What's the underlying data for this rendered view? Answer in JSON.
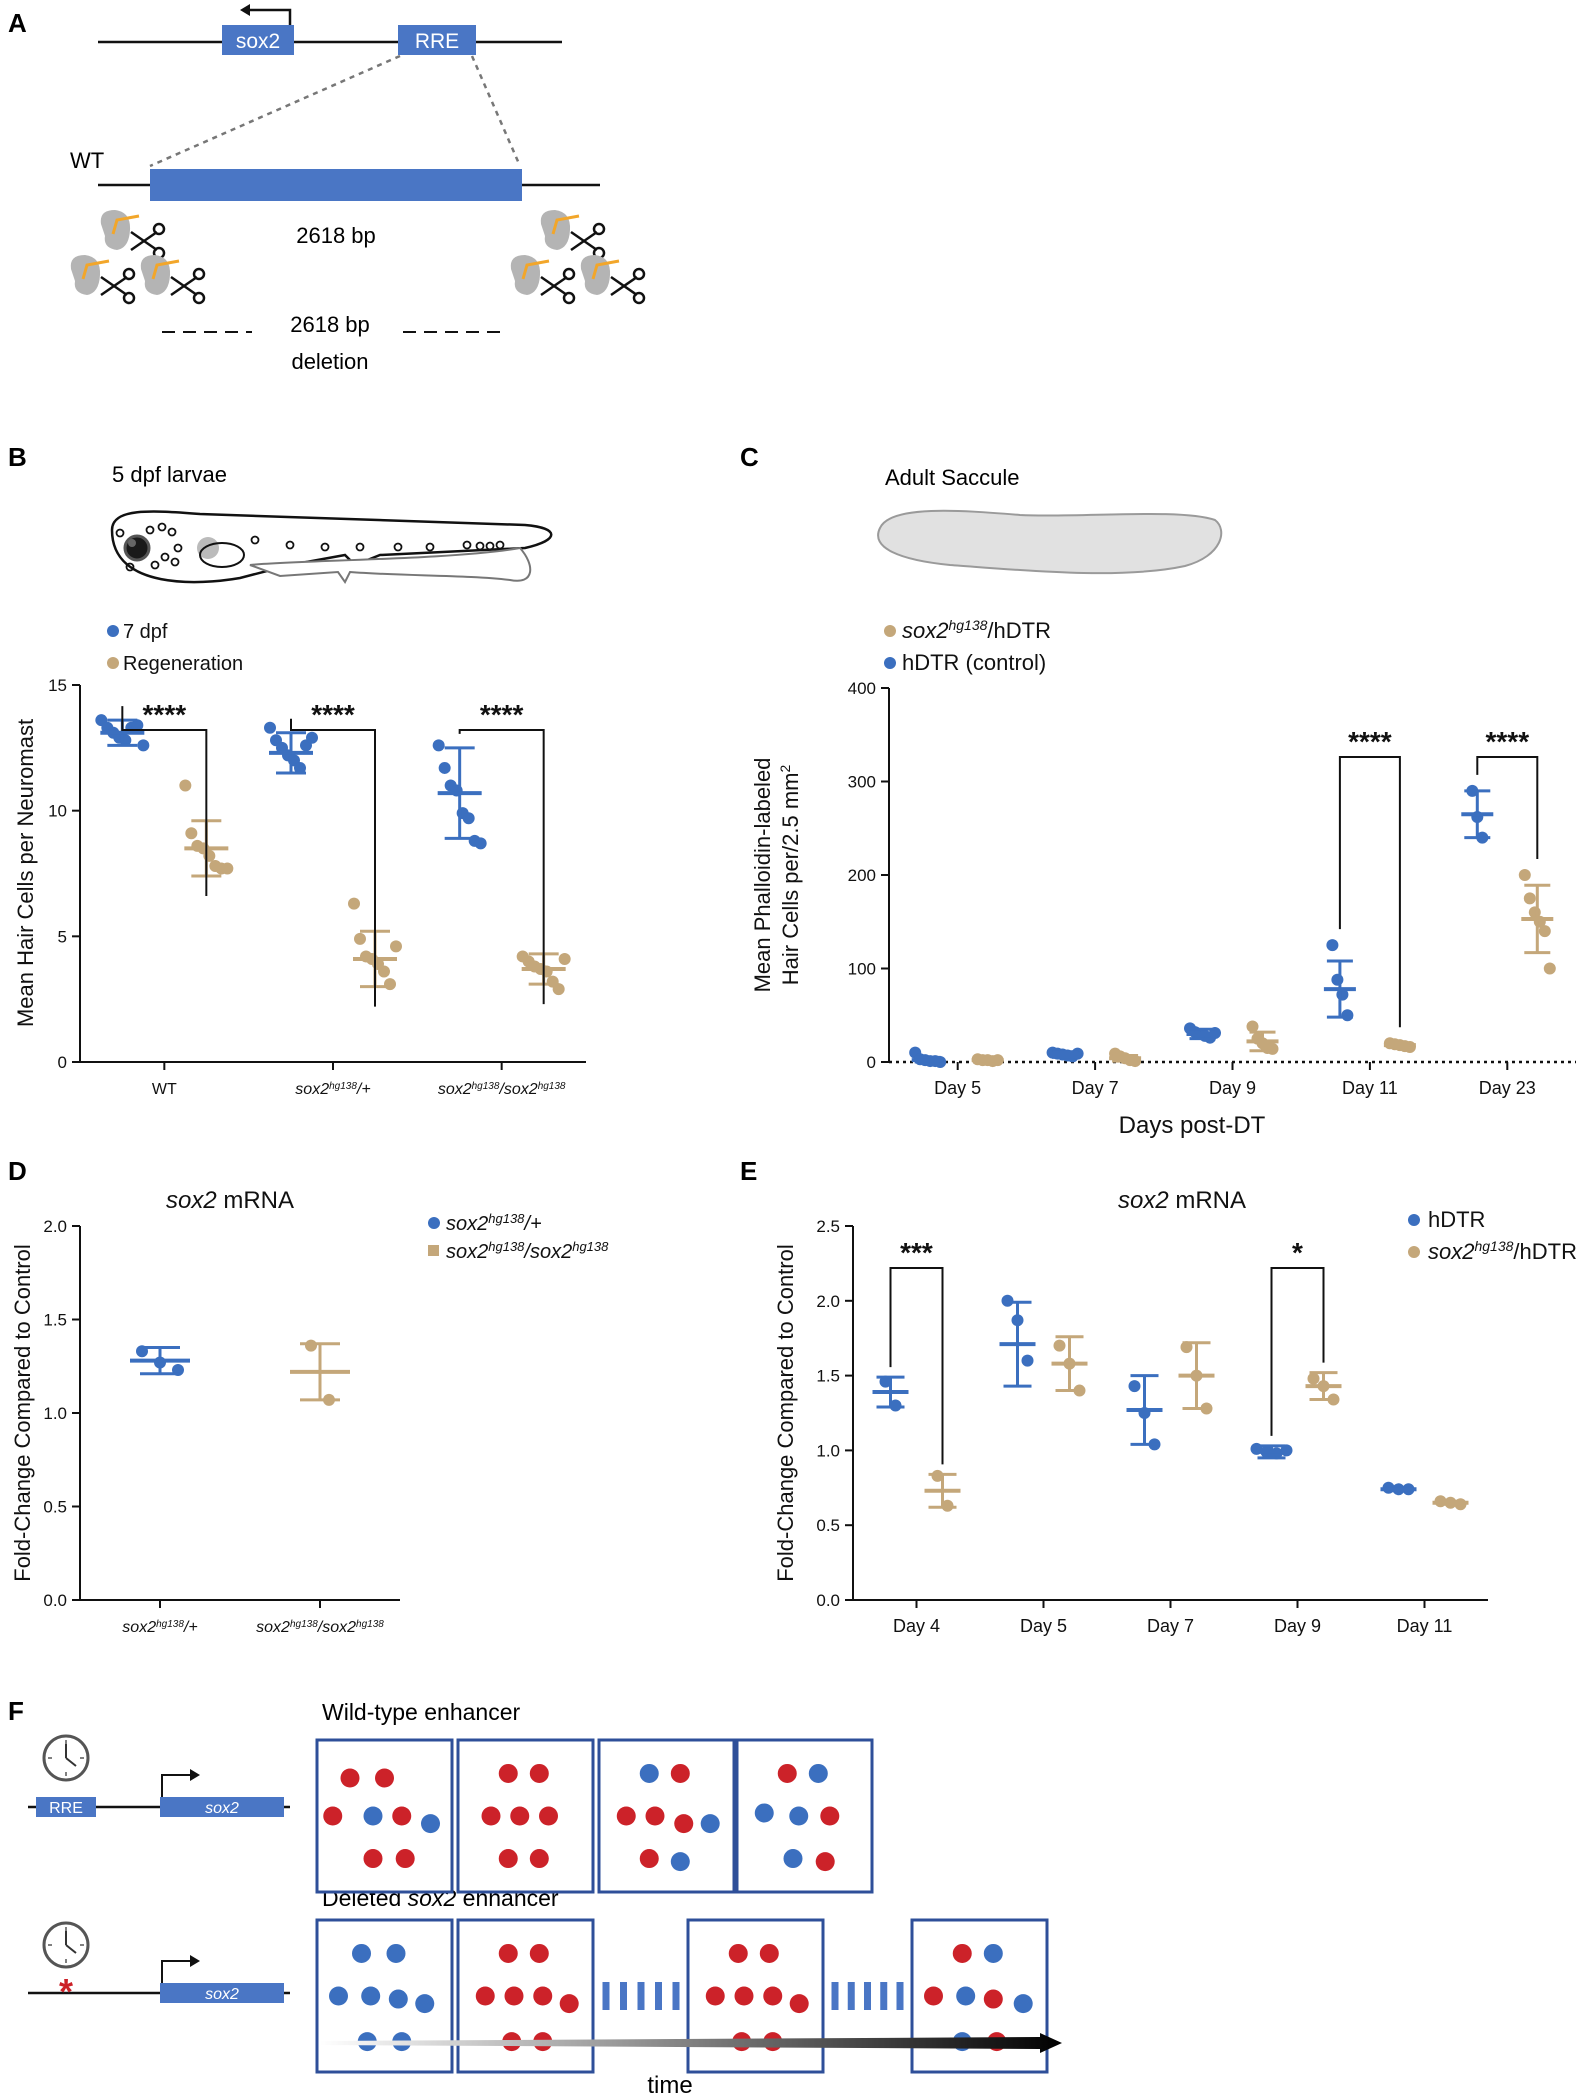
{
  "colors": {
    "blue": "#3b6fbf",
    "tan": "#c4a77a",
    "red": "#cc2229",
    "box": "#2e4f99",
    "gene": "#4a76c5",
    "gray": "#b4b4b4",
    "orange": "#f2a62a"
  },
  "panel_a": {
    "letter": "A",
    "gene_label": "sox2",
    "rre_label": "RRE",
    "wt_label": "WT",
    "size_label": "2618 bp",
    "deletion_line1": "2618 bp",
    "deletion_line2": "deletion"
  },
  "panel_b": {
    "letter": "B",
    "larvae_label": "5 dpf larvae"
  },
  "panel_c": {
    "letter": "C",
    "saccule_label": "Adult Saccule"
  },
  "panel_d": {
    "letter": "D"
  },
  "panel_e": {
    "letter": "E"
  },
  "panel_f": {
    "letter": "F",
    "wt_title": "Wild-type enhancer",
    "del_title_prefix": "Deleted ",
    "del_title_gene": "sox2",
    "del_title_suffix": " enhancer",
    "rre_label": "RRE",
    "gene_label": "sox2",
    "time_label": "time",
    "wt_boxes": [
      [
        [
          "r",
          0.2,
          0.25
        ],
        [
          "r",
          0.5,
          0.25
        ],
        [
          "r",
          0.05,
          0.5
        ],
        [
          "b",
          0.4,
          0.5
        ],
        [
          "r",
          0.65,
          0.5
        ],
        [
          "b",
          0.9,
          0.55
        ],
        [
          "r",
          0.4,
          0.78
        ],
        [
          "r",
          0.68,
          0.78
        ]
      ],
      [
        [
          "r",
          0.35,
          0.22
        ],
        [
          "r",
          0.62,
          0.22
        ],
        [
          "r",
          0.2,
          0.5
        ],
        [
          "r",
          0.45,
          0.5
        ],
        [
          "r",
          0.7,
          0.5
        ],
        [
          "r",
          0.35,
          0.78
        ],
        [
          "r",
          0.62,
          0.78
        ]
      ],
      [
        [
          "b",
          0.35,
          0.22
        ],
        [
          "r",
          0.62,
          0.22
        ],
        [
          "r",
          0.15,
          0.5
        ],
        [
          "r",
          0.4,
          0.5
        ],
        [
          "r",
          0.65,
          0.55
        ],
        [
          "b",
          0.88,
          0.55
        ],
        [
          "r",
          0.35,
          0.78
        ],
        [
          "b",
          0.62,
          0.8
        ]
      ],
      [
        [
          "r",
          0.35,
          0.22
        ],
        [
          "b",
          0.62,
          0.22
        ],
        [
          "b",
          0.15,
          0.48
        ],
        [
          "b",
          0.45,
          0.5
        ],
        [
          "r",
          0.72,
          0.5
        ],
        [
          "b",
          0.4,
          0.78
        ],
        [
          "r",
          0.68,
          0.8
        ]
      ]
    ],
    "del_boxes": [
      [
        [
          "b",
          0.3,
          0.22
        ],
        [
          "b",
          0.6,
          0.22
        ],
        [
          "b",
          0.1,
          0.5
        ],
        [
          "b",
          0.38,
          0.5
        ],
        [
          "b",
          0.62,
          0.52
        ],
        [
          "b",
          0.85,
          0.55
        ],
        [
          "b",
          0.35,
          0.8
        ],
        [
          "b",
          0.65,
          0.8
        ]
      ],
      [
        [
          "r",
          0.35,
          0.22
        ],
        [
          "r",
          0.62,
          0.22
        ],
        [
          "r",
          0.15,
          0.5
        ],
        [
          "r",
          0.4,
          0.5
        ],
        [
          "r",
          0.65,
          0.5
        ],
        [
          "r",
          0.88,
          0.55
        ],
        [
          "r",
          0.38,
          0.8
        ],
        [
          "r",
          0.65,
          0.8
        ]
      ],
      [
        [
          "r",
          0.35,
          0.22
        ],
        [
          "r",
          0.62,
          0.22
        ],
        [
          "r",
          0.15,
          0.5
        ],
        [
          "r",
          0.4,
          0.5
        ],
        [
          "r",
          0.65,
          0.5
        ],
        [
          "r",
          0.88,
          0.55
        ],
        [
          "r",
          0.38,
          0.8
        ],
        [
          "r",
          0.65,
          0.8
        ]
      ],
      [
        [
          "r",
          0.35,
          0.22
        ],
        [
          "b",
          0.62,
          0.22
        ],
        [
          "r",
          0.1,
          0.5
        ],
        [
          "b",
          0.38,
          0.5
        ],
        [
          "r",
          0.62,
          0.52
        ],
        [
          "b",
          0.88,
          0.55
        ],
        [
          "b",
          0.35,
          0.8
        ],
        [
          "r",
          0.65,
          0.8
        ]
      ]
    ]
  },
  "chart_data": [
    {
      "id": "B",
      "type": "scatter",
      "ylabel": "Mean Hair Cells per Neuromast",
      "ylim": [
        0,
        15
      ],
      "yticks": [
        0,
        5,
        10,
        15
      ],
      "categories": [
        {
          "label": "WT",
          "pre": "",
          "sup": "",
          "mid": "",
          "sup2": ""
        },
        {
          "label": "",
          "pre": "sox2",
          "sup": "hg138",
          "mid": "/+",
          "sup2": ""
        },
        {
          "label": "",
          "pre": "sox2",
          "sup": "hg138",
          "mid": "/sox2",
          "sup2": "hg138"
        }
      ],
      "legend": [
        {
          "name": "7 dpf",
          "color": "blue",
          "italic": false
        },
        {
          "name": "Regeneration",
          "color": "tan",
          "italic": false
        }
      ],
      "series": [
        {
          "name": "7 dpf",
          "color": "blue",
          "groups": [
            {
              "mean": 13.1,
              "sd": 0.5,
              "points": [
                13.6,
                13.3,
                13.1,
                12.9,
                12.8,
                13.3,
                13.4,
                12.6
              ]
            },
            {
              "mean": 12.3,
              "sd": 0.8,
              "points": [
                13.3,
                12.8,
                12.5,
                12.2,
                12.0,
                11.7,
                12.6,
                12.9
              ]
            },
            {
              "mean": 10.7,
              "sd": 1.8,
              "points": [
                12.6,
                11.7,
                11.0,
                10.8,
                9.9,
                9.7,
                8.8,
                8.7
              ]
            }
          ]
        },
        {
          "name": "Regeneration",
          "color": "tan",
          "groups": [
            {
              "mean": 8.5,
              "sd": 1.1,
              "points": [
                11.0,
                9.1,
                8.6,
                8.5,
                8.2,
                7.8,
                7.7,
                7.7
              ]
            },
            {
              "mean": 4.1,
              "sd": 1.1,
              "points": [
                6.3,
                4.9,
                4.2,
                4.1,
                3.9,
                3.6,
                3.1,
                4.6
              ]
            },
            {
              "mean": 3.7,
              "sd": 0.6,
              "points": [
                4.2,
                4.0,
                3.8,
                3.7,
                3.6,
                3.2,
                2.9,
                4.1
              ]
            }
          ]
        }
      ],
      "significance": [
        "****",
        "****",
        "****"
      ]
    },
    {
      "id": "C",
      "type": "scatter",
      "xlabel": "Days post-DT",
      "ylabel_line1": "Mean Phalloidin-labeled",
      "ylabel_line2": "Hair Cells per/2.5 mm",
      "ylabel_sup": "2",
      "ylim": [
        0,
        400
      ],
      "yticks": [
        0,
        100,
        200,
        300,
        400
      ],
      "categories": [
        "Day 5",
        "Day 7",
        "Day 9",
        "Day 11",
        "Day 23"
      ],
      "legend": [
        {
          "pre": "sox2",
          "sup": "hg138",
          "post": "/hDTR",
          "color": "tan"
        },
        {
          "pre": "",
          "sup": "",
          "post": "hDTR (control)",
          "color": "blue"
        }
      ],
      "series": [
        {
          "name": "hDTR (control)",
          "color": "blue",
          "groups": [
            {
              "mean": 2,
              "sd": 3,
              "points": [
                10,
                3,
                2,
                1,
                1,
                0
              ]
            },
            {
              "mean": 8,
              "sd": 3,
              "points": [
                10,
                9,
                8,
                7,
                6,
                9
              ]
            },
            {
              "mean": 30,
              "sd": 5,
              "points": [
                36,
                32,
                30,
                28,
                26,
                31
              ]
            },
            {
              "mean": 78,
              "sd": 30,
              "points": [
                125,
                88,
                72,
                50
              ]
            },
            {
              "mean": 265,
              "sd": 25,
              "points": [
                290,
                262,
                240
              ]
            }
          ]
        },
        {
          "name": "sox2hg138/hDTR",
          "color": "tan",
          "groups": [
            {
              "mean": 2,
              "sd": 1,
              "points": [
                3,
                2,
                2,
                1,
                2
              ]
            },
            {
              "mean": 4,
              "sd": 3,
              "points": [
                9,
                6,
                4,
                2,
                1
              ]
            },
            {
              "mean": 22,
              "sd": 10,
              "points": [
                38,
                25,
                20,
                15,
                14
              ]
            },
            {
              "mean": 18,
              "sd": 2,
              "points": [
                20,
                19,
                18,
                17,
                16
              ]
            },
            {
              "mean": 153,
              "sd": 36,
              "points": [
                200,
                175,
                160,
                150,
                140,
                100
              ]
            }
          ]
        }
      ],
      "significance": [
        {
          "index": 3,
          "text": "****"
        },
        {
          "index": 4,
          "text": "****"
        }
      ]
    },
    {
      "id": "D",
      "type": "scatter",
      "title_gene": "sox2",
      "title_rest": " mRNA",
      "ylabel": "Fold-Change Compared to Control",
      "ylim": [
        0,
        2
      ],
      "yticks": [
        0.0,
        0.5,
        1.0,
        1.5,
        2.0
      ],
      "categories": [
        {
          "pre": "sox2",
          "sup": "hg138",
          "mid": "/+",
          "sup2": ""
        },
        {
          "pre": "sox2",
          "sup": "hg138",
          "mid": "/sox2",
          "sup2": "hg138"
        }
      ],
      "legend": [
        {
          "pre": "sox2",
          "sup": "hg138",
          "mid": "/+",
          "sup2": "",
          "color": "blue"
        },
        {
          "pre": "sox2",
          "sup": "hg138",
          "mid": "/sox2",
          "sup2": "hg138",
          "color": "tan"
        }
      ],
      "series": [
        {
          "name": "sox2hg138/+",
          "color": "blue",
          "groups": [
            {
              "mean": 1.28,
              "sd": 0.07,
              "points": [
                1.33,
                1.27,
                1.23
              ]
            }
          ]
        },
        {
          "name": "sox2hg138/sox2hg138",
          "color": "tan",
          "groups": [
            {
              "mean": 1.22,
              "sd": 0.15,
              "points": [
                1.36,
                1.07
              ]
            }
          ]
        }
      ]
    },
    {
      "id": "E",
      "type": "scatter",
      "title_gene": "sox2",
      "title_rest": " mRNA",
      "ylabel": "Fold-Change Compared to Control",
      "ylim": [
        0,
        2.5
      ],
      "yticks": [
        0.0,
        0.5,
        1.0,
        1.5,
        2.0,
        2.5
      ],
      "categories": [
        "Day 4",
        "Day 5",
        "Day 7",
        "Day 9",
        "Day 11"
      ],
      "legend": [
        {
          "pre": "",
          "sup": "",
          "post": "hDTR",
          "color": "blue"
        },
        {
          "pre": "sox2",
          "sup": "hg138",
          "post": "/hDTR",
          "color": "tan"
        }
      ],
      "series": [
        {
          "name": "hDTR",
          "color": "blue",
          "groups": [
            {
              "mean": 1.39,
              "sd": 0.1,
              "points": [
                1.46,
                1.3
              ]
            },
            {
              "mean": 1.71,
              "sd": 0.28,
              "points": [
                2.0,
                1.87,
                1.6
              ]
            },
            {
              "mean": 1.27,
              "sd": 0.23,
              "points": [
                1.43,
                1.25,
                1.04
              ]
            },
            {
              "mean": 0.99,
              "sd": 0.04,
              "points": [
                1.01,
                0.99,
                0.98,
                1.0
              ]
            },
            {
              "mean": 0.74,
              "sd": 0.01,
              "points": [
                0.75,
                0.74,
                0.74
              ]
            }
          ]
        },
        {
          "name": "sox2hg138/hDTR",
          "color": "tan",
          "groups": [
            {
              "mean": 0.73,
              "sd": 0.11,
              "points": [
                0.83,
                0.63
              ]
            },
            {
              "mean": 1.58,
              "sd": 0.18,
              "points": [
                1.7,
                1.58,
                1.4
              ]
            },
            {
              "mean": 1.5,
              "sd": 0.22,
              "points": [
                1.69,
                1.5,
                1.28
              ]
            },
            {
              "mean": 1.43,
              "sd": 0.09,
              "points": [
                1.48,
                1.43,
                1.34
              ]
            },
            {
              "mean": 0.65,
              "sd": 0.01,
              "points": [
                0.66,
                0.65,
                0.64
              ]
            }
          ]
        }
      ],
      "significance": [
        {
          "index": 0,
          "text": "***"
        },
        {
          "index": 3,
          "text": "*"
        }
      ]
    }
  ]
}
